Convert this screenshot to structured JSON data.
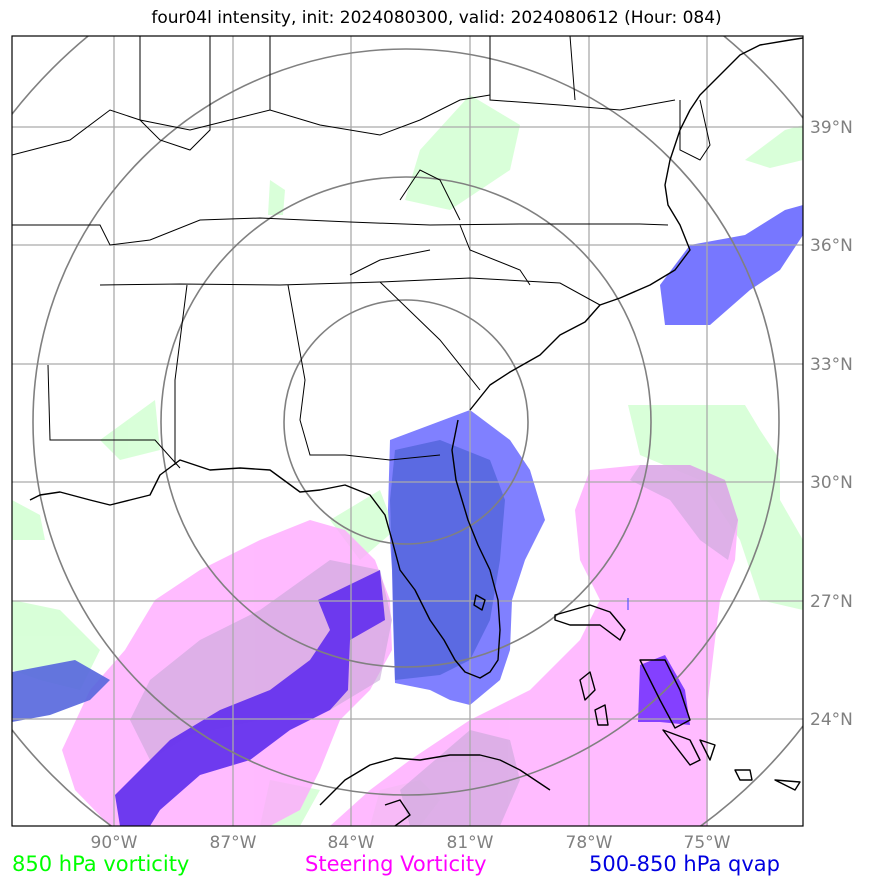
{
  "title": "four04l intensity, init: 2024080300, valid: 2024080612 (Hour: 084)",
  "lat_labels": [
    "39°N",
    "36°N",
    "33°N",
    "30°N",
    "27°N",
    "24°N"
  ],
  "lon_labels": [
    "90°W",
    "87°W",
    "84°W",
    "81°W",
    "78°W",
    "75°W"
  ],
  "legend": {
    "green": "850 hPa vorticity",
    "magenta": "Steering Vorticity",
    "blue": "500-850 hPa qvap"
  },
  "colors": {
    "green": "#00ff00",
    "magenta": "#ff00ff",
    "blue": "#0000e0",
    "grid": "#999999",
    "rings": "#808080"
  }
}
